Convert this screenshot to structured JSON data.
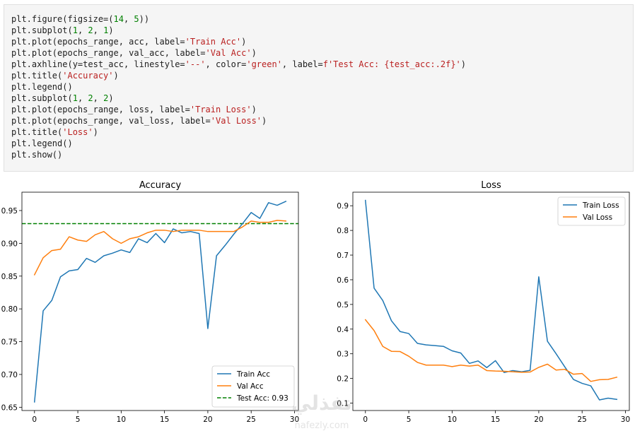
{
  "code": {
    "lines": [
      [
        {
          "t": "plt.figure(figsize=("
        },
        {
          "t": "14",
          "c": "num"
        },
        {
          "t": ", "
        },
        {
          "t": "5",
          "c": "num"
        },
        {
          "t": "))"
        }
      ],
      [
        {
          "t": "plt.subplot("
        },
        {
          "t": "1",
          "c": "num"
        },
        {
          "t": ", "
        },
        {
          "t": "2",
          "c": "num"
        },
        {
          "t": ", "
        },
        {
          "t": "1",
          "c": "num"
        },
        {
          "t": ")"
        }
      ],
      [
        {
          "t": "plt.plot(epochs_range, acc, label="
        },
        {
          "t": "'Train Acc'",
          "c": "str"
        },
        {
          "t": ")"
        }
      ],
      [
        {
          "t": "plt.plot(epochs_range, val_acc, label="
        },
        {
          "t": "'Val Acc'",
          "c": "str"
        },
        {
          "t": ")"
        }
      ],
      [
        {
          "t": "plt.axhline(y=test_acc, linestyle="
        },
        {
          "t": "'--'",
          "c": "str"
        },
        {
          "t": ", color="
        },
        {
          "t": "'green'",
          "c": "str"
        },
        {
          "t": ", label="
        },
        {
          "t": "f'Test Acc: {test_acc:.2f}'",
          "c": "str"
        },
        {
          "t": ")"
        }
      ],
      [
        {
          "t": "plt.title("
        },
        {
          "t": "'Accuracy'",
          "c": "str"
        },
        {
          "t": ")"
        }
      ],
      [
        {
          "t": "plt.legend()"
        }
      ],
      [
        {
          "t": "plt.subplot("
        },
        {
          "t": "1",
          "c": "num"
        },
        {
          "t": ", "
        },
        {
          "t": "2",
          "c": "num"
        },
        {
          "t": ", "
        },
        {
          "t": "2",
          "c": "num"
        },
        {
          "t": ")"
        }
      ],
      [
        {
          "t": "plt.plot(epochs_range, loss, label="
        },
        {
          "t": "'Train Loss'",
          "c": "str"
        },
        {
          "t": ")"
        }
      ],
      [
        {
          "t": "plt.plot(epochs_range, val_loss, label="
        },
        {
          "t": "'Val Loss'",
          "c": "str"
        },
        {
          "t": ")"
        }
      ],
      [
        {
          "t": "plt.title("
        },
        {
          "t": "'Loss'",
          "c": "str"
        },
        {
          "t": ")"
        }
      ],
      [
        {
          "t": "plt.legend()"
        }
      ],
      [
        {
          "t": "plt.show()"
        }
      ]
    ]
  },
  "colors": {
    "train": "#1f77b4",
    "val": "#ff7f0e",
    "test": "green",
    "code_string": "#ba2121",
    "code_number": "#008000"
  },
  "watermark": {
    "arabic": "نفذلي",
    "latin": "nafezly.com"
  },
  "chart_data": [
    {
      "type": "line",
      "title": "Accuracy",
      "xlabel": "",
      "ylabel": "",
      "xlim": [
        -1.45,
        30.45
      ],
      "ylim": [
        0.645,
        0.978
      ],
      "xticks": [
        0,
        5,
        10,
        15,
        20,
        25,
        30
      ],
      "yticks": [
        0.65,
        0.7,
        0.75,
        0.8,
        0.85,
        0.9,
        0.95
      ],
      "ytick_labels": [
        "0.65",
        "0.70",
        "0.75",
        "0.80",
        "0.85",
        "0.90",
        "0.95"
      ],
      "grid": false,
      "legend_position": "lower-right",
      "x": [
        0,
        1,
        2,
        3,
        4,
        5,
        6,
        7,
        8,
        9,
        10,
        11,
        12,
        13,
        14,
        15,
        16,
        17,
        18,
        19,
        20,
        21,
        22,
        23,
        24,
        25,
        26,
        27,
        28,
        29
      ],
      "series": [
        {
          "name": "Train Acc",
          "color_key": "train",
          "values": [
            0.658,
            0.797,
            0.813,
            0.849,
            0.858,
            0.86,
            0.877,
            0.871,
            0.881,
            0.885,
            0.89,
            0.886,
            0.907,
            0.901,
            0.915,
            0.901,
            0.922,
            0.916,
            0.918,
            0.915,
            0.77,
            0.881,
            0.897,
            0.914,
            0.93,
            0.947,
            0.938,
            0.962,
            0.958,
            0.964
          ]
        },
        {
          "name": "Val Acc",
          "color_key": "val",
          "values": [
            0.852,
            0.878,
            0.889,
            0.891,
            0.91,
            0.905,
            0.903,
            0.913,
            0.918,
            0.907,
            0.9,
            0.907,
            0.91,
            0.916,
            0.92,
            0.92,
            0.918,
            0.92,
            0.92,
            0.92,
            0.918,
            0.918,
            0.918,
            0.918,
            0.925,
            0.934,
            0.932,
            0.932,
            0.935,
            0.934
          ]
        }
      ],
      "hlines": [
        {
          "name": "Test Acc: 0.93",
          "y": 0.93,
          "color_key": "test",
          "dashed": true
        }
      ]
    },
    {
      "type": "line",
      "title": "Loss",
      "xlabel": "",
      "ylabel": "",
      "xlim": [
        -1.45,
        30.45
      ],
      "ylim": [
        0.07,
        0.955
      ],
      "xticks": [
        0,
        5,
        10,
        15,
        20,
        25,
        30
      ],
      "yticks": [
        0.1,
        0.2,
        0.3,
        0.4,
        0.5,
        0.6,
        0.7,
        0.8,
        0.9
      ],
      "ytick_labels": [
        "0.1",
        "0.2",
        "0.3",
        "0.4",
        "0.5",
        "0.6",
        "0.7",
        "0.8",
        "0.9"
      ],
      "grid": false,
      "legend_position": "upper-right",
      "x": [
        0,
        1,
        2,
        3,
        4,
        5,
        6,
        7,
        8,
        9,
        10,
        11,
        12,
        13,
        14,
        15,
        16,
        17,
        18,
        19,
        20,
        21,
        22,
        23,
        24,
        25,
        26,
        27,
        28,
        29
      ],
      "series": [
        {
          "name": "Train Loss",
          "color_key": "train",
          "values": [
            0.922,
            0.566,
            0.516,
            0.434,
            0.39,
            0.382,
            0.342,
            0.336,
            0.333,
            0.33,
            0.312,
            0.303,
            0.261,
            0.271,
            0.244,
            0.272,
            0.224,
            0.232,
            0.227,
            0.233,
            0.612,
            0.351,
            0.3,
            0.247,
            0.196,
            0.18,
            0.17,
            0.113,
            0.12,
            0.115
          ]
        },
        {
          "name": "Val Loss",
          "color_key": "val",
          "values": [
            0.438,
            0.394,
            0.33,
            0.31,
            0.309,
            0.29,
            0.265,
            0.254,
            0.254,
            0.254,
            0.248,
            0.254,
            0.25,
            0.254,
            0.232,
            0.23,
            0.229,
            0.227,
            0.225,
            0.226,
            0.245,
            0.258,
            0.234,
            0.237,
            0.217,
            0.22,
            0.188,
            0.195,
            0.196,
            0.205
          ]
        }
      ],
      "hlines": []
    }
  ]
}
